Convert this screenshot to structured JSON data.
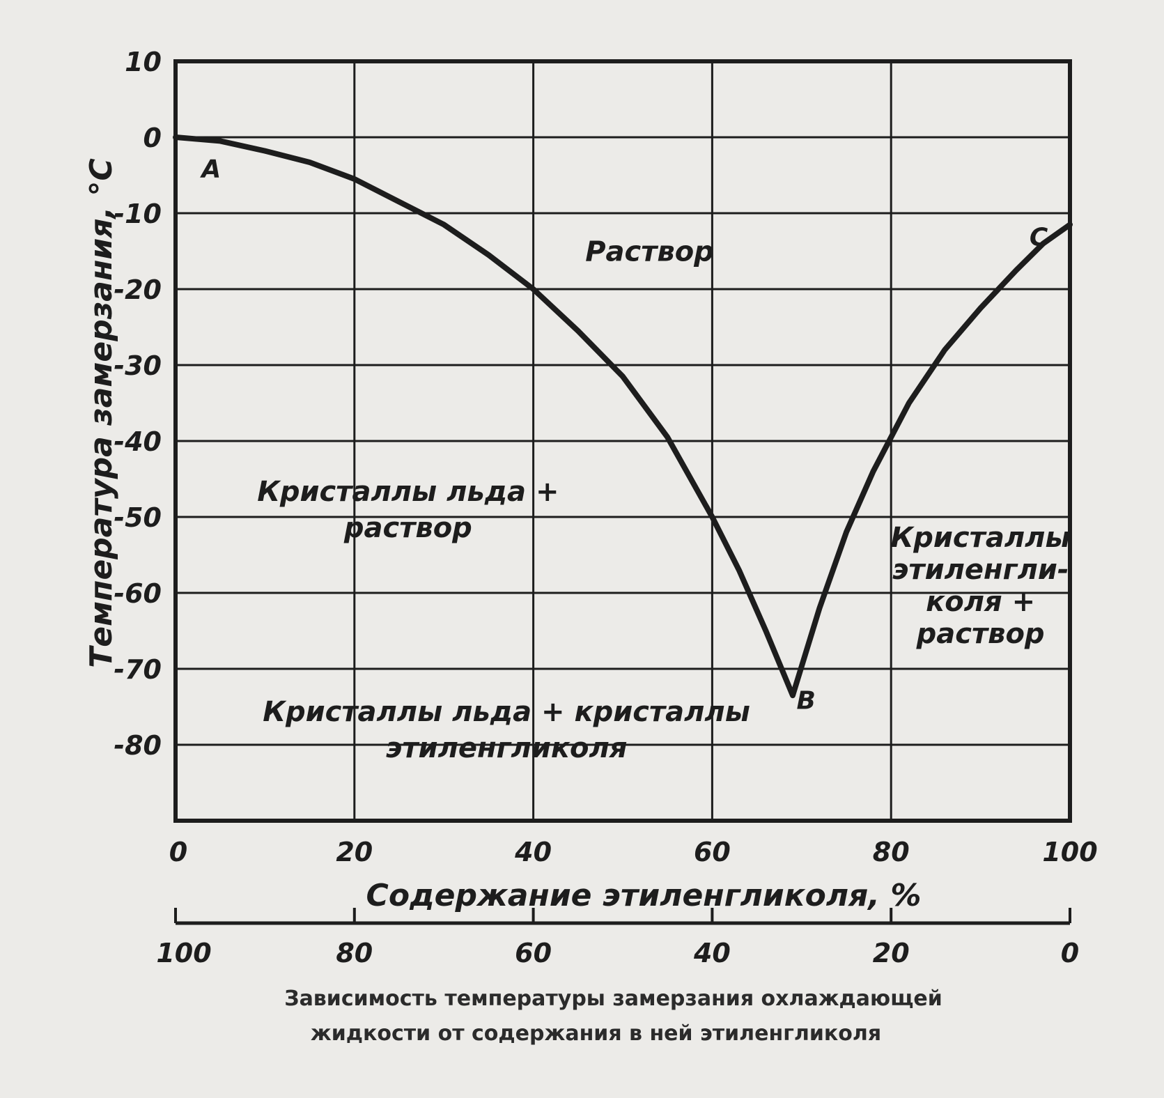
{
  "chart_data": {
    "type": "line",
    "title": "Зависимость температуры замерзания охлаждающей жидкости от содержания в ней этиленгликоля",
    "caption_lines": [
      "Зависимость температуры замерзания охлаждающей",
      "жидкости от содержания в ней этиленгликоля"
    ],
    "xlabel": "Содержание этиленгликоля, %",
    "ylabel": "Температура замерзания, °С",
    "xlim": [
      0,
      100
    ],
    "ylim": [
      -90,
      10
    ],
    "x_ticks": [
      "0",
      "20",
      "40",
      "60",
      "80",
      "100"
    ],
    "x2_ticks": [
      "100",
      "80",
      "60",
      "40",
      "20",
      "0"
    ],
    "y_ticks": [
      "10",
      "0",
      "-10",
      "-20",
      "-30",
      "-40",
      "-50",
      "-60",
      "-70",
      "-80"
    ],
    "grid": true,
    "series": [
      {
        "points": [
          [
            0,
            0
          ],
          [
            5,
            -0.5
          ],
          [
            10,
            -1.8
          ],
          [
            15,
            -3.3
          ],
          [
            20,
            -5.5
          ],
          [
            25,
            -8.5
          ],
          [
            30,
            -11.5
          ],
          [
            35,
            -15.5
          ],
          [
            40,
            -20
          ],
          [
            45,
            -25.5
          ],
          [
            50,
            -31.5
          ],
          [
            55,
            -39.5
          ],
          [
            60,
            -50
          ],
          [
            63,
            -57
          ],
          [
            66,
            -65
          ],
          [
            69,
            -73.5
          ],
          [
            72,
            -62
          ],
          [
            75,
            -52
          ],
          [
            78,
            -44
          ],
          [
            82,
            -35
          ],
          [
            86,
            -28
          ],
          [
            90,
            -22.5
          ],
          [
            94,
            -17.5
          ],
          [
            97,
            -14
          ],
          [
            100,
            -11.5
          ]
        ]
      }
    ],
    "point_labels": [
      {
        "text": "A",
        "x": 4,
        "y": -4
      },
      {
        "text": "B",
        "x": 70.5,
        "y": -74
      },
      {
        "text": "C",
        "x": 96.5,
        "y": -13
      }
    ],
    "region_labels": [
      {
        "lines": [
          "Раствор"
        ],
        "x": 53,
        "y": -15
      },
      {
        "lines": [
          "Кристаллы льда +",
          "раствор"
        ],
        "x": 26,
        "y": -49
      },
      {
        "lines": [
          "Кристаллы",
          "этиленгли-",
          "коля +",
          "раствор"
        ],
        "x": 90,
        "y": -59
      },
      {
        "lines": [
          "Кристаллы льда + кристаллы",
          "этиленгликоля"
        ],
        "x": 37,
        "y": -78
      }
    ]
  }
}
